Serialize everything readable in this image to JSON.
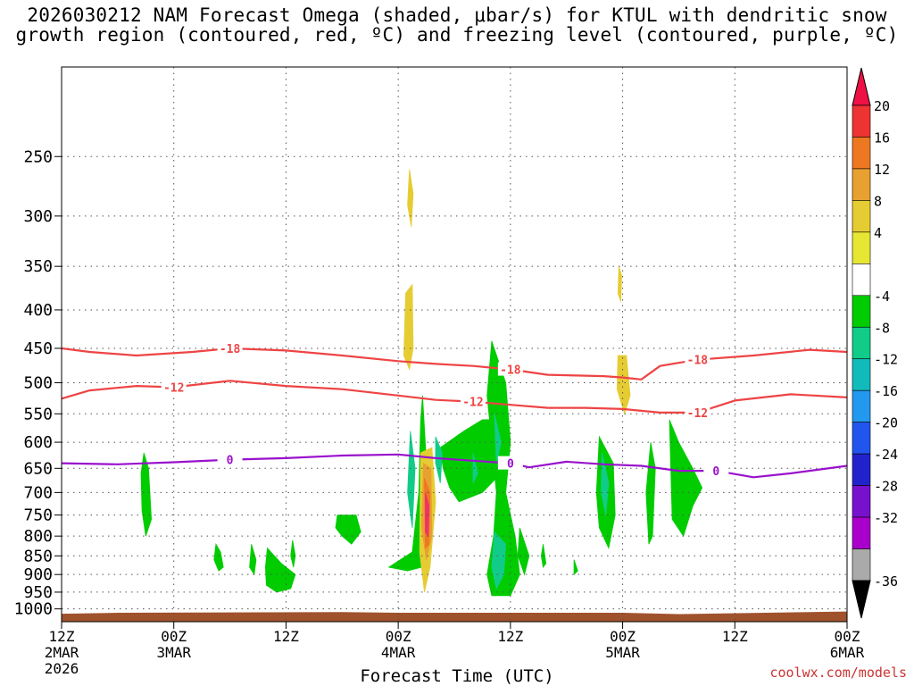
{
  "title_line1": "2026030212 NAM Forecast Omega (shaded, μbar/s) for KTUL with dendritic snow",
  "title_line2": "growth region (contoured, red, ºC) and freezing level (contoured, purple, ºC)",
  "credit": "coolwx.com/models",
  "chart_data": {
    "type": "heatmap",
    "title": "2026030212 NAM Forecast Omega (shaded, μbar/s) for KTUL with dendritic snow growth region (contoured, red, ºC) and freezing level (contoured, purple, ºC)",
    "xlabel": "Forecast Time (UTC)",
    "ylabel": "",
    "x_range_hours": [
      0,
      84
    ],
    "x_ticks": [
      {
        "hour": 0,
        "lines": [
          "12Z",
          "2MAR",
          "2026"
        ]
      },
      {
        "hour": 12,
        "lines": [
          "00Z",
          "3MAR"
        ]
      },
      {
        "hour": 24,
        "lines": [
          "12Z"
        ]
      },
      {
        "hour": 36,
        "lines": [
          "00Z",
          "4MAR"
        ]
      },
      {
        "hour": 48,
        "lines": [
          "12Z"
        ]
      },
      {
        "hour": 60,
        "lines": [
          "00Z",
          "5MAR"
        ]
      },
      {
        "hour": 72,
        "lines": [
          "12Z"
        ]
      },
      {
        "hour": 84,
        "lines": [
          "00Z",
          "6MAR"
        ]
      }
    ],
    "y_scale": "log-pressure",
    "y_range_hpa": [
      1040,
      190
    ],
    "y_ticks": [
      250,
      300,
      350,
      400,
      450,
      500,
      550,
      600,
      650,
      700,
      750,
      800,
      850,
      900,
      950,
      1000
    ],
    "colorbar": {
      "labels": [
        20,
        16,
        12,
        8,
        4,
        -4,
        -8,
        -12,
        -16,
        -20,
        -24,
        -28,
        -32,
        -36
      ],
      "colors": [
        "#ee1144",
        "#ee3333",
        "#ee7722",
        "#e8a030",
        "#e6cc33",
        "#e6e633",
        "#ffffff",
        "#00cc00",
        "#11cc88",
        "#11bbbb",
        "#2299ee",
        "#2255ee",
        "#2222cc",
        "#7711cc",
        "#aa00cc",
        "#aaaaaa",
        "#000000"
      ]
    },
    "contours": [
      {
        "value": -18,
        "color": "#ee4444",
        "label": "-18",
        "points": [
          [
            0,
            450
          ],
          [
            3,
            455
          ],
          [
            8,
            460
          ],
          [
            14,
            455
          ],
          [
            18,
            450
          ],
          [
            24,
            453
          ],
          [
            30,
            460
          ],
          [
            36,
            468
          ],
          [
            40,
            472
          ],
          [
            44,
            475
          ],
          [
            48,
            480
          ],
          [
            52,
            488
          ],
          [
            58,
            490
          ],
          [
            60,
            492
          ],
          [
            62,
            495
          ],
          [
            64,
            475
          ],
          [
            68,
            466
          ],
          [
            74,
            460
          ],
          [
            80,
            452
          ],
          [
            84,
            455
          ]
        ]
      },
      {
        "value": -12,
        "color": "#ee4444",
        "label": "-12",
        "points": [
          [
            0,
            525
          ],
          [
            3,
            512
          ],
          [
            8,
            505
          ],
          [
            12,
            507
          ],
          [
            18,
            497
          ],
          [
            24,
            505
          ],
          [
            30,
            510
          ],
          [
            36,
            520
          ],
          [
            40,
            527
          ],
          [
            44,
            530
          ],
          [
            48,
            535
          ],
          [
            52,
            540
          ],
          [
            56,
            540
          ],
          [
            60,
            542
          ],
          [
            64,
            548
          ],
          [
            68,
            548
          ],
          [
            72,
            528
          ],
          [
            78,
            518
          ],
          [
            84,
            523
          ]
        ]
      },
      {
        "value": 0,
        "color": "#9911cc",
        "label": "0",
        "points": [
          [
            0,
            640
          ],
          [
            6,
            642
          ],
          [
            12,
            638
          ],
          [
            18,
            633
          ],
          [
            24,
            630
          ],
          [
            30,
            625
          ],
          [
            36,
            623
          ],
          [
            40,
            630
          ],
          [
            44,
            635
          ],
          [
            48,
            640
          ],
          [
            50,
            648
          ],
          [
            54,
            637
          ],
          [
            58,
            642
          ],
          [
            62,
            645
          ],
          [
            66,
            655
          ],
          [
            70,
            655
          ],
          [
            74,
            668
          ],
          [
            78,
            660
          ],
          [
            84,
            645
          ]
        ]
      }
    ],
    "shaded_regions": [
      {
        "name": "omega-neg-4-8",
        "color": "#00cc00",
        "polygons": [
          [
            [
              8.8,
              620
            ],
            [
              9.3,
              650
            ],
            [
              9.6,
              760
            ],
            [
              9.0,
              800
            ],
            [
              8.6,
              740
            ],
            [
              8.5,
              660
            ]
          ],
          [
            [
              16.5,
              820
            ],
            [
              17.0,
              840
            ],
            [
              17.3,
              880
            ],
            [
              16.8,
              890
            ],
            [
              16.3,
              860
            ]
          ],
          [
            [
              20.3,
              820
            ],
            [
              20.8,
              860
            ],
            [
              20.6,
              900
            ],
            [
              20.1,
              880
            ]
          ],
          [
            [
              22.0,
              830
            ],
            [
              23.5,
              870
            ],
            [
              25.0,
              900
            ],
            [
              24.5,
              940
            ],
            [
              23.0,
              950
            ],
            [
              21.9,
              930
            ],
            [
              21.8,
              880
            ]
          ],
          [
            [
              24.7,
              810
            ],
            [
              25.0,
              850
            ],
            [
              24.8,
              880
            ],
            [
              24.5,
              850
            ]
          ],
          [
            [
              29.5,
              750
            ],
            [
              31.5,
              750
            ],
            [
              32.0,
              790
            ],
            [
              31.0,
              820
            ],
            [
              30.0,
              800
            ],
            [
              29.3,
              780
            ]
          ],
          [
            [
              35.0,
              880
            ],
            [
              37.5,
              840
            ],
            [
              38.2,
              700
            ],
            [
              38.4,
              560
            ],
            [
              38.6,
              520
            ],
            [
              39.2,
              700
            ],
            [
              38.5,
              880
            ],
            [
              37.0,
              890
            ]
          ],
          [
            [
              40.5,
              610
            ],
            [
              43.0,
              580
            ],
            [
              45.0,
              560
            ],
            [
              47.0,
              560
            ],
            [
              47.5,
              650
            ],
            [
              45.0,
              700
            ],
            [
              42.5,
              720
            ],
            [
              41.5,
              690
            ],
            [
              40.8,
              650
            ]
          ],
          [
            [
              46.0,
              440
            ],
            [
              47.5,
              500
            ],
            [
              48.0,
              600
            ],
            [
              47.5,
              700
            ],
            [
              48.5,
              800
            ],
            [
              49.0,
              900
            ],
            [
              48.0,
              960
            ],
            [
              46.0,
              960
            ],
            [
              45.5,
              900
            ],
            [
              46.2,
              800
            ],
            [
              46.5,
              700
            ],
            [
              46.0,
              600
            ],
            [
              45.5,
              520
            ]
          ],
          [
            [
              49.0,
              780
            ],
            [
              50.0,
              850
            ],
            [
              49.5,
              900
            ],
            [
              48.8,
              850
            ]
          ],
          [
            [
              51.5,
              820
            ],
            [
              51.8,
              870
            ],
            [
              51.5,
              880
            ],
            [
              51.3,
              850
            ]
          ],
          [
            [
              54.8,
              860
            ],
            [
              55.2,
              890
            ],
            [
              54.8,
              900
            ]
          ],
          [
            [
              57.5,
              590
            ],
            [
              59.0,
              640
            ],
            [
              59.2,
              750
            ],
            [
              58.5,
              830
            ],
            [
              57.5,
              780
            ],
            [
              57.2,
              700
            ]
          ],
          [
            [
              63.0,
              600
            ],
            [
              63.5,
              650
            ],
            [
              63.2,
              800
            ],
            [
              62.8,
              820
            ],
            [
              62.5,
              700
            ]
          ],
          [
            [
              65.0,
              560
            ],
            [
              66.0,
              600
            ],
            [
              67.5,
              650
            ],
            [
              68.5,
              690
            ],
            [
              67.5,
              730
            ],
            [
              66.5,
              800
            ],
            [
              65.3,
              760
            ]
          ]
        ]
      },
      {
        "name": "omega-neg-8-12",
        "color": "#11cc88",
        "polygons": [
          [
            [
              37.3,
              580
            ],
            [
              37.8,
              650
            ],
            [
              37.5,
              780
            ],
            [
              37.0,
              700
            ]
          ],
          [
            [
              40.0,
              590
            ],
            [
              40.7,
              620
            ],
            [
              40.5,
              680
            ],
            [
              40.0,
              640
            ]
          ],
          [
            [
              44.0,
              620
            ],
            [
              44.5,
              660
            ],
            [
              44.0,
              680
            ]
          ],
          [
            [
              46.3,
              550
            ],
            [
              47.0,
              600
            ],
            [
              46.5,
              640
            ]
          ],
          [
            [
              46.3,
              790
            ],
            [
              47.5,
              820
            ],
            [
              47.3,
              900
            ],
            [
              46.5,
              940
            ],
            [
              46.0,
              880
            ]
          ],
          [
            [
              57.8,
              620
            ],
            [
              58.5,
              680
            ],
            [
              58.2,
              750
            ],
            [
              57.7,
              700
            ]
          ]
        ]
      },
      {
        "name": "omega-pos-4-8",
        "color": "#e6cc33",
        "polygons": [
          [
            [
              37.2,
              260
            ],
            [
              37.6,
              280
            ],
            [
              37.4,
              310
            ],
            [
              37.0,
              290
            ]
          ],
          [
            [
              36.8,
              380
            ],
            [
              37.5,
              370
            ],
            [
              37.6,
              450
            ],
            [
              37.2,
              480
            ],
            [
              36.6,
              460
            ]
          ],
          [
            [
              38.4,
              620
            ],
            [
              39.6,
              610
            ],
            [
              40.0,
              720
            ],
            [
              39.4,
              880
            ],
            [
              38.8,
              950
            ],
            [
              38.3,
              840
            ]
          ],
          [
            [
              59.6,
              350
            ],
            [
              59.9,
              360
            ],
            [
              59.8,
              390
            ],
            [
              59.5,
              380
            ]
          ],
          [
            [
              59.5,
              460
            ],
            [
              60.4,
              460
            ],
            [
              60.8,
              520
            ],
            [
              60.2,
              550
            ],
            [
              59.4,
              510
            ]
          ]
        ]
      },
      {
        "name": "omega-pos-8-12",
        "color": "#e8a030",
        "polygons": [
          [
            [
              38.7,
              640
            ],
            [
              39.5,
              650
            ],
            [
              39.6,
              800
            ],
            [
              39.0,
              860
            ],
            [
              38.5,
              780
            ]
          ]
        ]
      },
      {
        "name": "omega-pos-12-16",
        "color": "#ee7722",
        "polygons": [
          [
            [
              38.8,
              670
            ],
            [
              39.4,
              700
            ],
            [
              39.3,
              820
            ],
            [
              38.9,
              830
            ]
          ]
        ]
      },
      {
        "name": "omega-pos-16-20",
        "color": "#ee3366",
        "polygons": [
          [
            [
              38.9,
              700
            ],
            [
              39.3,
              730
            ],
            [
              39.2,
              800
            ],
            [
              38.9,
              790
            ]
          ]
        ]
      }
    ],
    "ground": {
      "color": "#a0522d",
      "surface_hpa": [
        [
          0,
          1015
        ],
        [
          6,
          1012
        ],
        [
          30,
          1010
        ],
        [
          36,
          1012
        ],
        [
          60,
          1012
        ],
        [
          66,
          1016
        ],
        [
          84,
          1008
        ]
      ]
    }
  }
}
